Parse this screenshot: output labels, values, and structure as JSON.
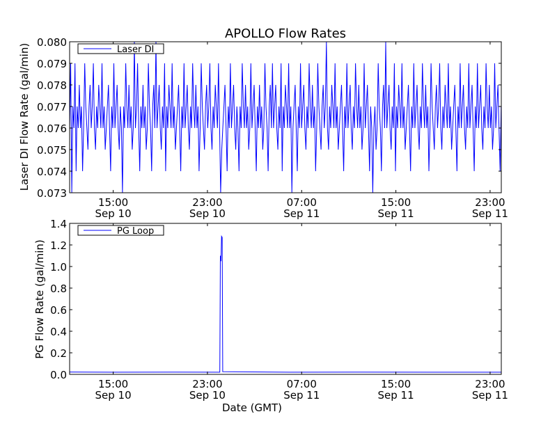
{
  "title": "APOLLO Flow Rates",
  "chart_data": [
    {
      "type": "line",
      "title": "APOLLO Flow Rates",
      "xlabel": "",
      "ylabel": "Laser DI Flow Rate (gal/min)",
      "legend": {
        "label": "Laser DI",
        "placement": "top-left"
      },
      "color": "#0000ff",
      "xlim_hours_from_sep10_0000": [
        11.3,
        47.95
      ],
      "ylim": [
        0.073,
        0.08
      ],
      "yticks": [
        "0.073",
        "0.074",
        "0.075",
        "0.076",
        "0.077",
        "0.078",
        "0.079",
        "0.080"
      ],
      "xticks": [
        {
          "hour": 15,
          "label1": "15:00",
          "label2": "Sep 10"
        },
        {
          "hour": 23,
          "label1": "23:00",
          "label2": "Sep 10"
        },
        {
          "hour": 31,
          "label1": "07:00",
          "label2": "Sep 11"
        },
        {
          "hour": 39,
          "label1": "15:00",
          "label2": "Sep 11"
        },
        {
          "hour": 47,
          "label1": "23:00",
          "label2": "Sep 11"
        }
      ],
      "x_start_hour": 11.3,
      "x_step_hour": 0.0916,
      "values": [
        0.076,
        0.079,
        0.073,
        0.077,
        0.076,
        0.079,
        0.074,
        0.077,
        0.076,
        0.078,
        0.076,
        0.077,
        0.074,
        0.076,
        0.079,
        0.077,
        0.076,
        0.075,
        0.077,
        0.078,
        0.076,
        0.077,
        0.079,
        0.076,
        0.075,
        0.077,
        0.076,
        0.078,
        0.077,
        0.076,
        0.079,
        0.076,
        0.077,
        0.075,
        0.076,
        0.077,
        0.078,
        0.076,
        0.074,
        0.077,
        0.076,
        0.079,
        0.076,
        0.077,
        0.078,
        0.076,
        0.075,
        0.077,
        0.076,
        0.073,
        0.077,
        0.076,
        0.079,
        0.077,
        0.076,
        0.078,
        0.076,
        0.077,
        0.075,
        0.076,
        0.08,
        0.076,
        0.077,
        0.079,
        0.076,
        0.074,
        0.077,
        0.076,
        0.078,
        0.076,
        0.077,
        0.075,
        0.076,
        0.079,
        0.077,
        0.076,
        0.074,
        0.077,
        0.078,
        0.076,
        0.08,
        0.076,
        0.077,
        0.078,
        0.076,
        0.075,
        0.077,
        0.076,
        0.079,
        0.074,
        0.077,
        0.076,
        0.078,
        0.077,
        0.076,
        0.079,
        0.076,
        0.077,
        0.075,
        0.076,
        0.077,
        0.078,
        0.076,
        0.074,
        0.077,
        0.076,
        0.079,
        0.076,
        0.077,
        0.078,
        0.076,
        0.075,
        0.077,
        0.076,
        0.079,
        0.077,
        0.076,
        0.078,
        0.076,
        0.077,
        0.074,
        0.076,
        0.079,
        0.077,
        0.076,
        0.075,
        0.077,
        0.078,
        0.076,
        0.077,
        0.079,
        0.076,
        0.075,
        0.077,
        0.076,
        0.078,
        0.077,
        0.076,
        0.079,
        0.076,
        0.073,
        0.075,
        0.076,
        0.077,
        0.078,
        0.076,
        0.074,
        0.077,
        0.076,
        0.079,
        0.076,
        0.077,
        0.078,
        0.076,
        0.075,
        0.077,
        0.076,
        0.074,
        0.077,
        0.076,
        0.079,
        0.077,
        0.076,
        0.078,
        0.076,
        0.077,
        0.075,
        0.076,
        0.079,
        0.076,
        0.077,
        0.078,
        0.076,
        0.074,
        0.077,
        0.076,
        0.078,
        0.076,
        0.077,
        0.075,
        0.076,
        0.079,
        0.077,
        0.076,
        0.074,
        0.077,
        0.078,
        0.076,
        0.079,
        0.076,
        0.077,
        0.078,
        0.076,
        0.075,
        0.077,
        0.076,
        0.079,
        0.074,
        0.077,
        0.076,
        0.078,
        0.077,
        0.076,
        0.079,
        0.076,
        0.077,
        0.073,
        0.076,
        0.077,
        0.078,
        0.076,
        0.074,
        0.077,
        0.076,
        0.079,
        0.076,
        0.077,
        0.078,
        0.076,
        0.075,
        0.077,
        0.076,
        0.079,
        0.077,
        0.076,
        0.078,
        0.076,
        0.077,
        0.074,
        0.076,
        0.079,
        0.077,
        0.076,
        0.075,
        0.077,
        0.078,
        0.076,
        0.077,
        0.08,
        0.076,
        0.075,
        0.077,
        0.076,
        0.078,
        0.077,
        0.076,
        0.079,
        0.076,
        0.077,
        0.075,
        0.076,
        0.077,
        0.078,
        0.076,
        0.074,
        0.077,
        0.076,
        0.079,
        0.076,
        0.077,
        0.078,
        0.076,
        0.075,
        0.077,
        0.076,
        0.079,
        0.077,
        0.076,
        0.078,
        0.076,
        0.077,
        0.075,
        0.076,
        0.079,
        0.076,
        0.077,
        0.078,
        0.076,
        0.074,
        0.077,
        0.076,
        0.073,
        0.076,
        0.077,
        0.075,
        0.076,
        0.079,
        0.077,
        0.076,
        0.074,
        0.077,
        0.078,
        0.076,
        0.08,
        0.076,
        0.077,
        0.078,
        0.076,
        0.075,
        0.077,
        0.076,
        0.079,
        0.074,
        0.077,
        0.076,
        0.078,
        0.077,
        0.076,
        0.079,
        0.076,
        0.077,
        0.075,
        0.076,
        0.077,
        0.078,
        0.076,
        0.074,
        0.077,
        0.076,
        0.079,
        0.076,
        0.077,
        0.078,
        0.076,
        0.075,
        0.077,
        0.076,
        0.079,
        0.077,
        0.076,
        0.078,
        0.076,
        0.077,
        0.074,
        0.076,
        0.079,
        0.077,
        0.076,
        0.075,
        0.077,
        0.078,
        0.076,
        0.077,
        0.079,
        0.076,
        0.075,
        0.077,
        0.076,
        0.078,
        0.077,
        0.076,
        0.079,
        0.076,
        0.077,
        0.075,
        0.076,
        0.077,
        0.078,
        0.076,
        0.074,
        0.077,
        0.076,
        0.079,
        0.076,
        0.077,
        0.078,
        0.076,
        0.075,
        0.077,
        0.076,
        0.079,
        0.076,
        0.077,
        0.078,
        0.076,
        0.074,
        0.077,
        0.076,
        0.079,
        0.076,
        0.077,
        0.078,
        0.076,
        0.075,
        0.077,
        0.076,
        0.079,
        0.077,
        0.076,
        0.078,
        0.076,
        0.077,
        0.075,
        0.076,
        0.079,
        0.076,
        0.077,
        0.078,
        0.076,
        0.074,
        0.077,
        0.076,
        0.079,
        0.076
      ]
    },
    {
      "type": "line",
      "title": "",
      "xlabel": "Date (GMT)",
      "ylabel": "PG Flow Rate (gal/min)",
      "legend": {
        "label": "PG Loop",
        "placement": "top-left"
      },
      "color": "#0000ff",
      "xlim_hours_from_sep10_0000": [
        11.3,
        47.95
      ],
      "ylim": [
        0.0,
        1.4
      ],
      "yticks": [
        "0.0",
        "0.2",
        "0.4",
        "0.6",
        "0.8",
        "1.0",
        "1.2",
        "1.4"
      ],
      "xticks": [
        {
          "hour": 15,
          "label1": "15:00",
          "label2": "Sep 10"
        },
        {
          "hour": 23,
          "label1": "23:00",
          "label2": "Sep 10"
        },
        {
          "hour": 31,
          "label1": "07:00",
          "label2": "Sep 11"
        },
        {
          "hour": 39,
          "label1": "15:00",
          "label2": "Sep 11"
        },
        {
          "hour": 47,
          "label1": "23:00",
          "label2": "Sep 11"
        }
      ],
      "x": [
        11.3,
        15,
        20,
        24.05,
        24.1,
        24.15,
        24.2,
        24.25,
        24.3,
        30,
        36,
        42,
        47.95
      ],
      "y": [
        0.022,
        0.02,
        0.021,
        0.02,
        1.1,
        1.05,
        1.28,
        1.27,
        0.025,
        0.02,
        0.021,
        0.02,
        0.02
      ]
    }
  ]
}
